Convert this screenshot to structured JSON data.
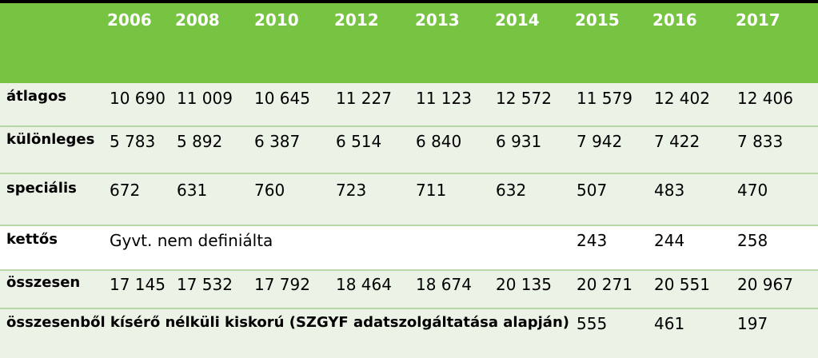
{
  "years": [
    "2006",
    "2008",
    "2010",
    "2012",
    "2013",
    "2014",
    "2015",
    "2016",
    "2017"
  ],
  "rows": [
    {
      "label": "átlagos",
      "values": [
        "10 690",
        "11 009",
        "10 645",
        "11 227",
        "11 123",
        "12 572",
        "11 579",
        "12 402",
        "12 406"
      ]
    },
    {
      "label": "különleges",
      "values": [
        "5 783",
        "5 892",
        "6 387",
        "6 514",
        "6 840",
        "6 931",
        "7 942",
        "7 422",
        "7 833"
      ]
    },
    {
      "label": "speciális",
      "values": [
        "672",
        "631",
        "760",
        "723",
        "711",
        "632",
        "507",
        "483",
        "470"
      ]
    },
    {
      "label": "kettős",
      "note": "Gyvt. nem definiálta",
      "values": [
        "243",
        "244",
        "258"
      ]
    },
    {
      "label": "összesen",
      "values": [
        "17 145",
        "17 532",
        "17 792",
        "18 464",
        "18 674",
        "20 135",
        "20 271",
        "20 551",
        "20 967"
      ]
    },
    {
      "label": "összesenből kísérő nélküli kiskorú (SZGYF adatszolgáltatása alapján)",
      "values": [
        "555",
        "461",
        "197"
      ]
    }
  ]
}
